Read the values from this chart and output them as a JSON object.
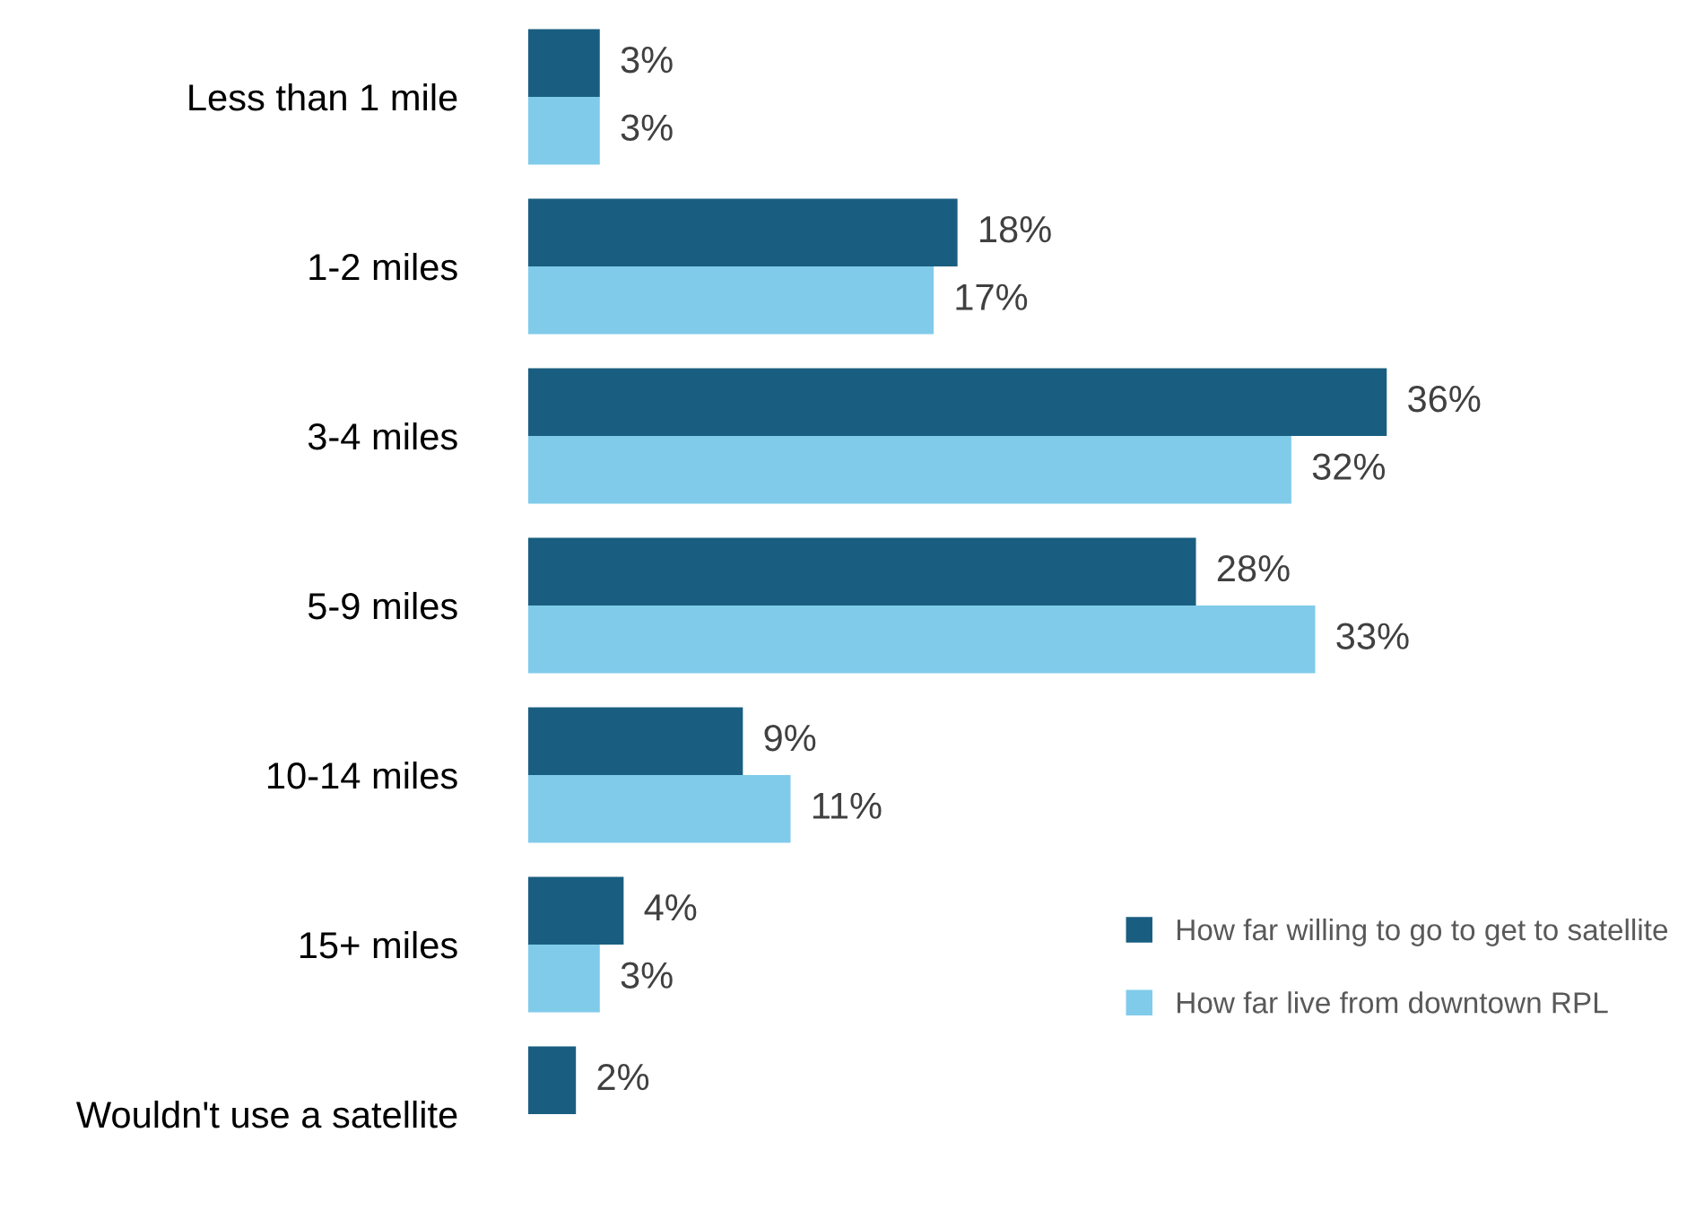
{
  "chart_data": {
    "type": "bar",
    "orientation": "horizontal",
    "categories": [
      "Less than 1 mile",
      "1-2 miles",
      "3-4 miles",
      "5-9 miles",
      "10-14 miles",
      "15+ miles",
      "Wouldn't use a satellite"
    ],
    "series": [
      {
        "name": "How far willing to go to get to satellite",
        "color": "#195e80",
        "values": [
          3,
          18,
          36,
          28,
          9,
          4,
          2
        ],
        "value_labels": [
          "3%",
          "18%",
          "36%",
          "28%",
          "9%",
          "4%",
          "2%"
        ]
      },
      {
        "name": "How far live from downtown RPL",
        "color": "#80cbea",
        "values": [
          3,
          17,
          32,
          33,
          11,
          3,
          null
        ],
        "value_labels": [
          "3%",
          "17%",
          "32%",
          "33%",
          "11%",
          "3%",
          null
        ]
      }
    ],
    "legend": "right"
  }
}
